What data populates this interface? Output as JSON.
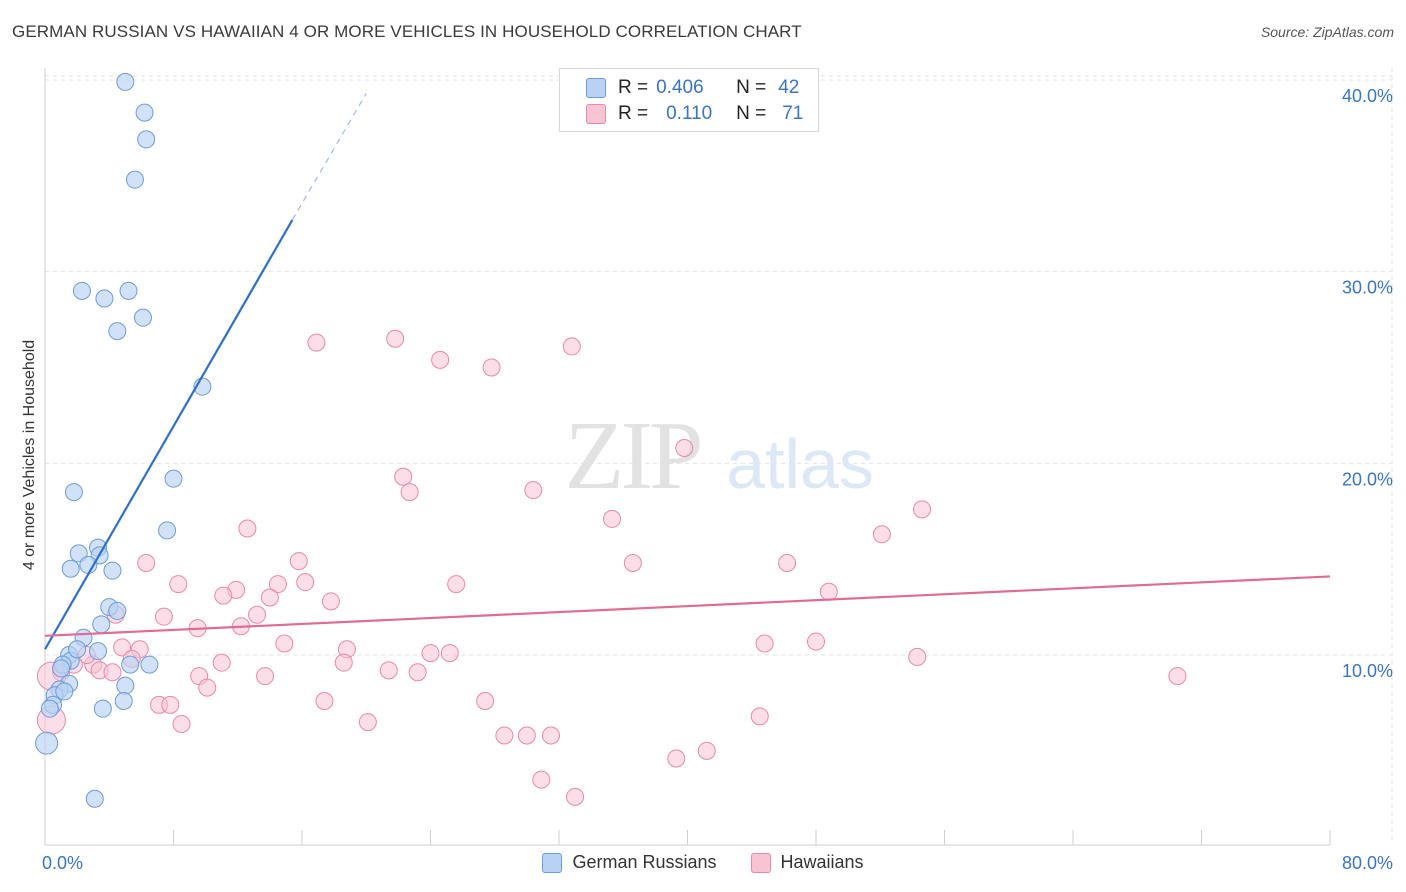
{
  "header": {
    "title": "GERMAN RUSSIAN VS HAWAIIAN 4 OR MORE VEHICLES IN HOUSEHOLD CORRELATION CHART",
    "source": "Source: ZipAtlas.com"
  },
  "watermark": {
    "zip": "ZIP",
    "atlas": "atlas"
  },
  "legend": {
    "rows": [
      {
        "r_label": "R =",
        "r_value": "0.406",
        "n_label": "N =",
        "n_value": "42"
      },
      {
        "r_label": "R =",
        "r_value": "0.110",
        "n_label": "N =",
        "n_value": "71"
      }
    ]
  },
  "bottom_legend": {
    "series_a": "German Russians",
    "series_b": "Hawaiians"
  },
  "colors": {
    "blue_fill": "#b9d2f3",
    "blue_stroke": "#6c9bd8",
    "blue_line": "#2f6fca",
    "pink_fill": "#f8c3d3",
    "pink_stroke": "#e88aa7",
    "pink_line": "#e06b94",
    "axis_text": "#3a74c4",
    "grid": "#e3e3e3"
  },
  "chart_data": {
    "type": "scatter",
    "title": "GERMAN RUSSIAN VS HAWAIIAN 4 OR MORE VEHICLES IN HOUSEHOLD CORRELATION CHART",
    "xlabel": "",
    "ylabel": "4 or more Vehicles in Household",
    "xlim": [
      0,
      80
    ],
    "ylim": [
      0,
      42
    ],
    "x_tick_labels": [
      {
        "value": 0,
        "label": "0.0%"
      },
      {
        "value": 80,
        "label": "80.0%"
      }
    ],
    "y_ticks": [
      {
        "value": 10,
        "label": "10.0%"
      },
      {
        "value": 20,
        "label": "20.0%"
      },
      {
        "value": 30,
        "label": "30.0%"
      },
      {
        "value": 40,
        "label": "40.0%"
      }
    ],
    "x_minor_ticks": [
      8,
      16,
      24,
      32,
      40,
      48,
      56,
      64,
      72,
      80
    ],
    "legend_position": "top-center",
    "series": [
      {
        "name": "German Russians",
        "R": 0.406,
        "N": 42,
        "trend": {
          "x1": 0.0,
          "y1": 10.3,
          "x2": 15.4,
          "y2": 32.7,
          "dashed_to_x": 20.0,
          "dashed_to_y": 39.3
        },
        "points": [
          [
            5.0,
            39.9
          ],
          [
            6.2,
            38.3
          ],
          [
            6.3,
            36.9
          ],
          [
            5.6,
            34.8
          ],
          [
            2.3,
            29.0
          ],
          [
            5.2,
            29.0
          ],
          [
            3.7,
            28.6
          ],
          [
            6.1,
            27.6
          ],
          [
            4.5,
            26.9
          ],
          [
            9.8,
            24.0
          ],
          [
            1.8,
            18.5
          ],
          [
            8.0,
            19.2
          ],
          [
            7.6,
            16.5
          ],
          [
            2.1,
            15.3
          ],
          [
            3.3,
            15.6
          ],
          [
            3.4,
            15.2
          ],
          [
            1.6,
            14.5
          ],
          [
            2.7,
            14.7
          ],
          [
            4.2,
            14.4
          ],
          [
            4.0,
            12.5
          ],
          [
            4.5,
            12.3
          ],
          [
            3.5,
            11.6
          ],
          [
            2.4,
            10.9
          ],
          [
            1.5,
            10.0
          ],
          [
            3.3,
            10.2
          ],
          [
            1.6,
            9.7
          ],
          [
            5.3,
            9.5
          ],
          [
            6.5,
            9.5
          ],
          [
            1.1,
            9.5
          ],
          [
            1.5,
            8.5
          ],
          [
            0.9,
            8.2
          ],
          [
            0.6,
            7.9
          ],
          [
            1.2,
            8.1
          ],
          [
            5.0,
            8.4
          ],
          [
            0.5,
            7.4
          ],
          [
            0.3,
            7.2
          ],
          [
            4.9,
            7.6
          ],
          [
            3.6,
            7.2
          ],
          [
            0.1,
            5.4
          ],
          [
            3.1,
            2.5
          ],
          [
            1.0,
            9.3
          ],
          [
            2.0,
            10.3
          ]
        ]
      },
      {
        "name": "Hawaiians",
        "R": 0.11,
        "N": 71,
        "trend": {
          "x1": 0.0,
          "y1": 11.0,
          "x2": 80.0,
          "y2": 14.1
        },
        "points": [
          [
            16.9,
            26.3
          ],
          [
            21.8,
            26.5
          ],
          [
            24.6,
            25.4
          ],
          [
            27.8,
            25.0
          ],
          [
            32.8,
            26.1
          ],
          [
            39.8,
            20.8
          ],
          [
            22.3,
            19.3
          ],
          [
            22.7,
            18.5
          ],
          [
            30.4,
            18.6
          ],
          [
            35.3,
            17.1
          ],
          [
            52.1,
            16.3
          ],
          [
            54.6,
            17.6
          ],
          [
            12.6,
            16.6
          ],
          [
            15.8,
            14.9
          ],
          [
            6.3,
            14.8
          ],
          [
            36.6,
            14.8
          ],
          [
            46.2,
            14.8
          ],
          [
            8.3,
            13.7
          ],
          [
            11.9,
            13.4
          ],
          [
            14.5,
            13.7
          ],
          [
            16.2,
            13.8
          ],
          [
            25.6,
            13.7
          ],
          [
            11.1,
            13.1
          ],
          [
            14.0,
            13.0
          ],
          [
            17.8,
            12.8
          ],
          [
            48.8,
            13.3
          ],
          [
            7.4,
            12.0
          ],
          [
            13.2,
            12.1
          ],
          [
            4.4,
            12.1
          ],
          [
            9.5,
            11.4
          ],
          [
            12.2,
            11.5
          ],
          [
            4.8,
            10.4
          ],
          [
            5.9,
            10.3
          ],
          [
            14.9,
            10.6
          ],
          [
            18.8,
            10.3
          ],
          [
            24.0,
            10.1
          ],
          [
            25.2,
            10.1
          ],
          [
            44.8,
            10.6
          ],
          [
            48.0,
            10.7
          ],
          [
            54.3,
            9.9
          ],
          [
            3.0,
            9.5
          ],
          [
            3.4,
            9.2
          ],
          [
            4.2,
            9.1
          ],
          [
            5.4,
            9.8
          ],
          [
            11.0,
            9.6
          ],
          [
            18.6,
            9.6
          ],
          [
            21.4,
            9.2
          ],
          [
            23.2,
            9.1
          ],
          [
            1.0,
            9.1
          ],
          [
            2.6,
            10.0
          ],
          [
            9.6,
            8.9
          ],
          [
            10.1,
            8.3
          ],
          [
            13.7,
            8.9
          ],
          [
            1.8,
            9.5
          ],
          [
            70.5,
            8.9
          ],
          [
            7.1,
            7.4
          ],
          [
            7.8,
            7.4
          ],
          [
            17.4,
            7.6
          ],
          [
            27.4,
            7.6
          ],
          [
            8.5,
            6.4
          ],
          [
            20.1,
            6.5
          ],
          [
            44.5,
            6.8
          ],
          [
            28.6,
            5.8
          ],
          [
            30.0,
            5.8
          ],
          [
            31.5,
            5.8
          ],
          [
            41.2,
            5.0
          ],
          [
            39.3,
            4.6
          ],
          [
            30.9,
            3.5
          ],
          [
            33.0,
            2.6
          ],
          [
            0.4,
            6.6
          ],
          [
            0.4,
            8.9
          ]
        ]
      }
    ]
  }
}
